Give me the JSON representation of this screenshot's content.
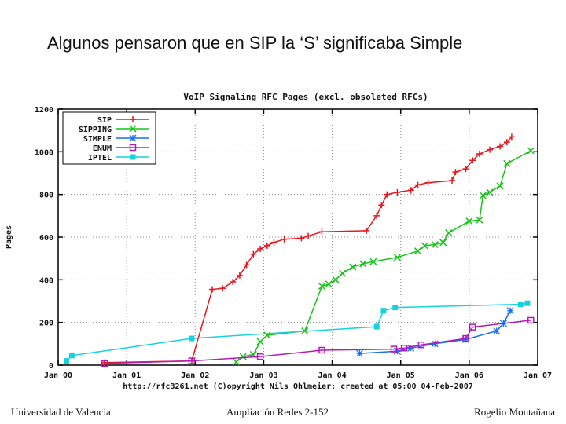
{
  "slide": {
    "title": "Algunos pensaron que en SIP la ‘S’ significaba Simple",
    "footer_left": "Universidad de Valencia",
    "footer_center": "Ampliación Redes 2-152",
    "footer_right": "Rogelio Montañana"
  },
  "chart_data": {
    "type": "line",
    "title": "VoIP Signaling RFC Pages (excl. obsoleted RFCs)",
    "ylabel": "Pages",
    "xlabel": "",
    "caption": "http://rfc3261.net (C)opyright Nils Ohlmeier; created at 05:00 04-Feb-2007",
    "xlim": [
      2000.0,
      2007.0
    ],
    "ylim": [
      0,
      1200
    ],
    "x_ticks": [
      {
        "x": 2000,
        "label": "Jan 00"
      },
      {
        "x": 2001,
        "label": "Jan 01"
      },
      {
        "x": 2002,
        "label": "Jan 02"
      },
      {
        "x": 2003,
        "label": "Jan 03"
      },
      {
        "x": 2004,
        "label": "Jan 04"
      },
      {
        "x": 2005,
        "label": "Jan 05"
      },
      {
        "x": 2006,
        "label": "Jan 06"
      },
      {
        "x": 2007,
        "label": "Jan 07"
      }
    ],
    "y_ticks": [
      0,
      200,
      400,
      600,
      800,
      1000,
      1200
    ],
    "grid": true,
    "legend_position": "top-left",
    "series": [
      {
        "name": "SIP",
        "color": "#e8161d",
        "marker": "plus",
        "x": [
          2000.67,
          2001.95,
          2002.25,
          2002.4,
          2002.55,
          2002.65,
          2002.75,
          2002.85,
          2002.95,
          2003.05,
          2003.15,
          2003.3,
          2003.55,
          2003.65,
          2003.85,
          2004.5,
          2004.65,
          2004.72,
          2004.8,
          2004.95,
          2005.15,
          2005.25,
          2005.4,
          2005.75,
          2005.8,
          2005.95,
          2006.05,
          2006.15,
          2006.3,
          2006.45,
          2006.55,
          2006.62
        ],
        "y": [
          12,
          20,
          355,
          360,
          390,
          420,
          470,
          520,
          545,
          560,
          575,
          590,
          595,
          605,
          625,
          630,
          700,
          750,
          800,
          810,
          820,
          845,
          855,
          865,
          905,
          920,
          960,
          990,
          1010,
          1025,
          1045,
          1070
        ]
      },
      {
        "name": "SIPPING",
        "color": "#18c41a",
        "marker": "x",
        "x": [
          2002.6,
          2002.7,
          2002.85,
          2002.95,
          2003.05,
          2003.6,
          2003.85,
          2003.95,
          2004.05,
          2004.15,
          2004.3,
          2004.45,
          2004.6,
          2004.95,
          2005.25,
          2005.35,
          2005.5,
          2005.62,
          2005.7,
          2006.0,
          2006.15,
          2006.2,
          2006.3,
          2006.45,
          2006.55,
          2006.9
        ],
        "y": [
          15,
          40,
          50,
          110,
          140,
          160,
          370,
          380,
          400,
          430,
          460,
          475,
          485,
          505,
          535,
          560,
          565,
          575,
          620,
          675,
          680,
          795,
          810,
          840,
          945,
          1005
        ]
      },
      {
        "name": "SIMPLE",
        "color": "#1a6ef0",
        "marker": "star",
        "x": [
          2004.4,
          2004.95,
          2005.15,
          2005.5,
          2005.95,
          2006.4,
          2006.5,
          2006.6
        ],
        "y": [
          55,
          65,
          80,
          100,
          120,
          160,
          195,
          255
        ]
      },
      {
        "name": "ENUM",
        "color": "#b21bb8",
        "marker": "square-open",
        "x": [
          2000.68,
          2001.95,
          2002.95,
          2003.85,
          2004.9,
          2005.05,
          2005.3,
          2005.95,
          2006.05,
          2006.9
        ],
        "y": [
          8,
          20,
          40,
          70,
          75,
          80,
          95,
          125,
          178,
          210
        ]
      },
      {
        "name": "IPTEL",
        "color": "#17d2dd",
        "marker": "square-filled",
        "x": [
          2000.12,
          2000.2,
          2001.95,
          2004.65,
          2004.75,
          2004.92,
          2006.75,
          2006.85
        ],
        "y": [
          20,
          45,
          125,
          180,
          255,
          270,
          285,
          290
        ]
      }
    ]
  }
}
